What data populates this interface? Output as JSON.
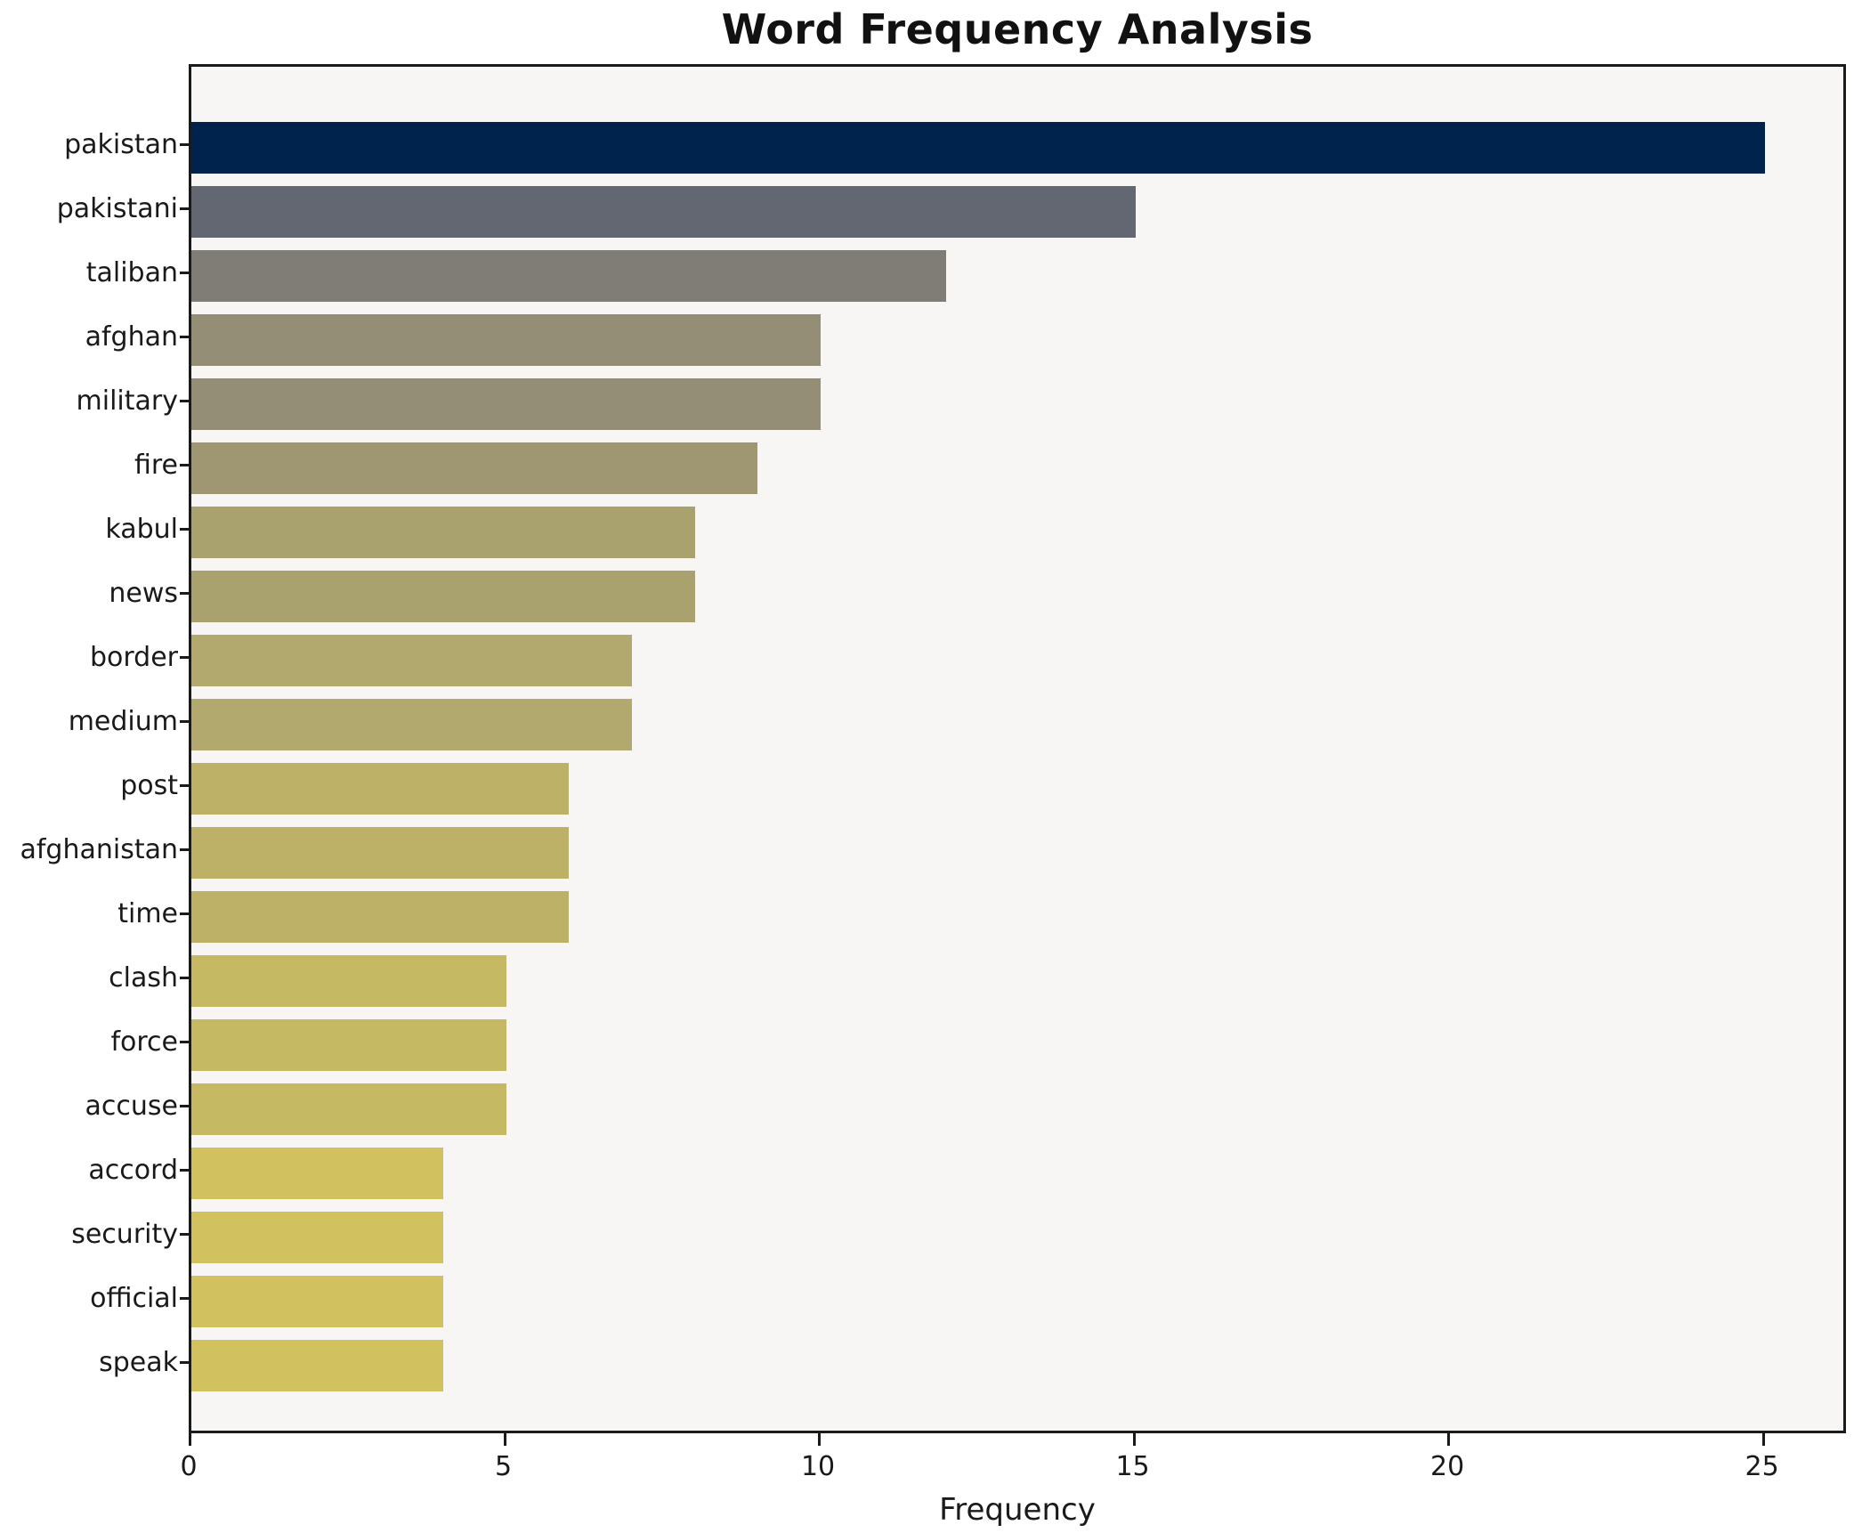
{
  "title": "Word Frequency Analysis",
  "xlabel": "Frequency",
  "chart_data": {
    "type": "bar",
    "orientation": "horizontal",
    "title": "Word Frequency Analysis",
    "xlabel": "Frequency",
    "ylabel": "",
    "grid": false,
    "legend": null,
    "categories": [
      "pakistan",
      "pakistani",
      "taliban",
      "afghan",
      "military",
      "fire",
      "kabul",
      "news",
      "border",
      "medium",
      "post",
      "afghanistan",
      "time",
      "clash",
      "force",
      "accuse",
      "accord",
      "security",
      "official",
      "speak"
    ],
    "values": [
      25,
      15,
      12,
      10,
      10,
      9,
      8,
      8,
      7,
      7,
      6,
      6,
      6,
      5,
      5,
      5,
      4,
      4,
      4,
      4
    ],
    "bar_colors": [
      "#00234e",
      "#636771",
      "#807d76",
      "#948e77",
      "#948e77",
      "#9f9772",
      "#a9a16e",
      "#a9a16e",
      "#b1a96d",
      "#b1a96d",
      "#bcb167",
      "#bcb167",
      "#bcb167",
      "#c6b964",
      "#c6b964",
      "#c6b964",
      "#d1c25f",
      "#d1c25f",
      "#d1c25f",
      "#d1c25f"
    ],
    "x_ticks": [
      0,
      5,
      10,
      15,
      20,
      25
    ],
    "xlim": [
      0,
      26.25
    ],
    "plot_bg": "#f7f6f5",
    "figure_bg": "#ffffff",
    "spine_color": "#1a1a1a",
    "text_color": "#1a1a1a"
  }
}
